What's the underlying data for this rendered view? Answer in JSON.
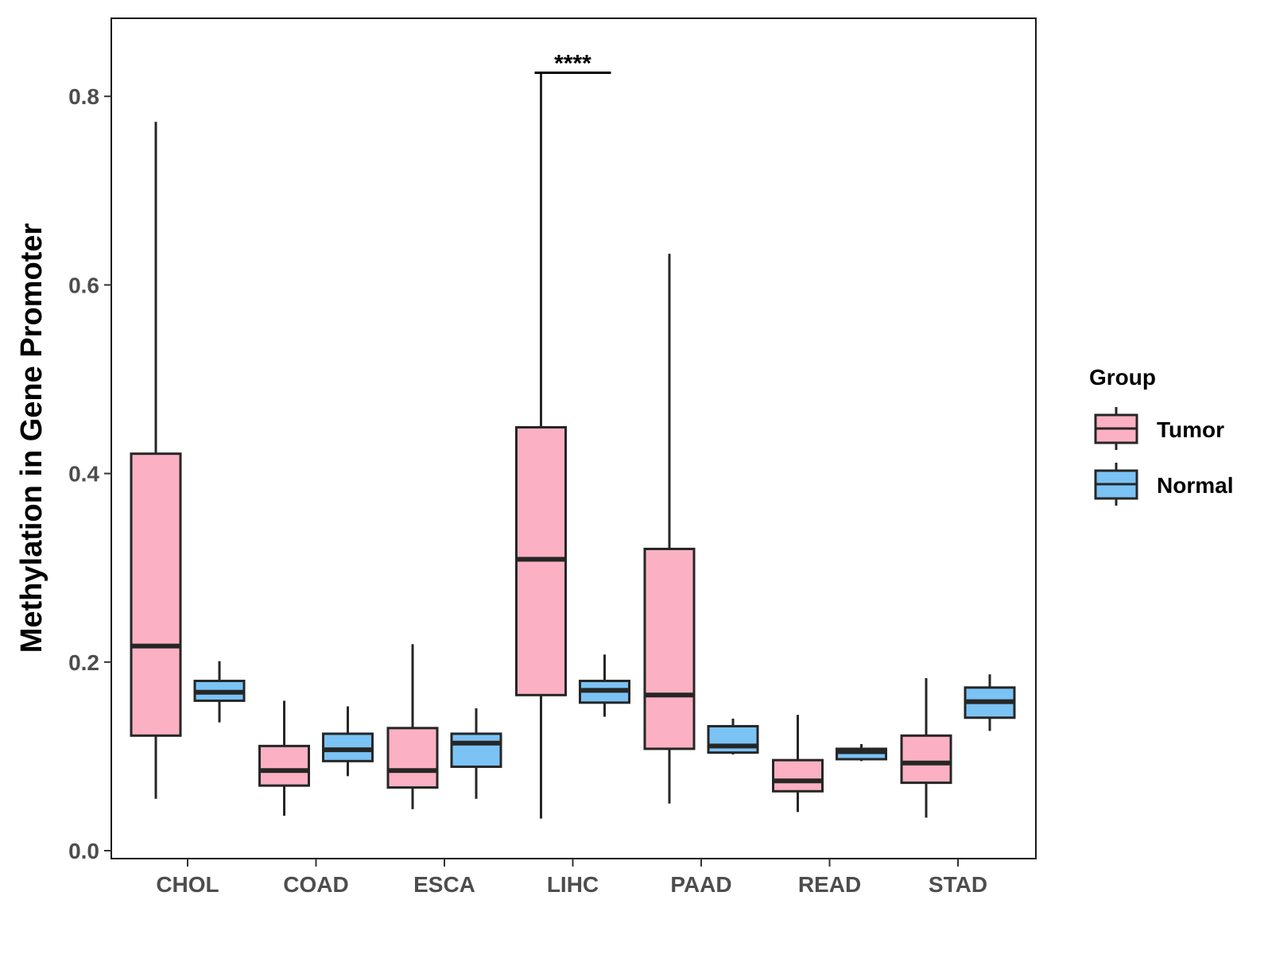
{
  "chart_data": {
    "type": "boxplot",
    "title": "",
    "xlabel": "",
    "ylabel": "Methylation in Gene Promoter",
    "ylim": [
      0.0,
      0.875
    ],
    "yticks": [
      "0.0",
      "0.2",
      "0.4",
      "0.6",
      "0.8"
    ],
    "categories": [
      "CHOL",
      "COAD",
      "ESCA",
      "LIHC",
      "PAAD",
      "READ",
      "STAD"
    ],
    "legend": {
      "title": "Group",
      "position": "right"
    },
    "series": [
      {
        "name": "Tumor",
        "color": "#FBB1C3",
        "boxes": [
          {
            "min": 0.055,
            "q1": 0.122,
            "median": 0.217,
            "q3": 0.421,
            "max": 0.773
          },
          {
            "min": 0.037,
            "q1": 0.069,
            "median": 0.085,
            "q3": 0.111,
            "max": 0.159
          },
          {
            "min": 0.044,
            "q1": 0.067,
            "median": 0.085,
            "q3": 0.13,
            "max": 0.219
          },
          {
            "min": 0.034,
            "q1": 0.165,
            "median": 0.309,
            "q3": 0.449,
            "max": 0.826
          },
          {
            "min": 0.05,
            "q1": 0.108,
            "median": 0.165,
            "q3": 0.32,
            "max": 0.633
          },
          {
            "min": 0.041,
            "q1": 0.063,
            "median": 0.074,
            "q3": 0.096,
            "max": 0.144
          },
          {
            "min": 0.035,
            "q1": 0.072,
            "median": 0.093,
            "q3": 0.122,
            "max": 0.183
          }
        ]
      },
      {
        "name": "Normal",
        "color": "#7BC3F5",
        "boxes": [
          {
            "min": 0.136,
            "q1": 0.159,
            "median": 0.168,
            "q3": 0.18,
            "max": 0.201
          },
          {
            "min": 0.079,
            "q1": 0.095,
            "median": 0.107,
            "q3": 0.124,
            "max": 0.153
          },
          {
            "min": 0.055,
            "q1": 0.089,
            "median": 0.114,
            "q3": 0.124,
            "max": 0.151
          },
          {
            "min": 0.142,
            "q1": 0.157,
            "median": 0.17,
            "q3": 0.18,
            "max": 0.208
          },
          {
            "min": 0.102,
            "q1": 0.104,
            "median": 0.111,
            "q3": 0.132,
            "max": 0.14
          },
          {
            "min": 0.095,
            "q1": 0.097,
            "median": 0.105,
            "q3": 0.108,
            "max": 0.113
          },
          {
            "min": 0.127,
            "q1": 0.141,
            "median": 0.158,
            "q3": 0.173,
            "max": 0.187
          }
        ]
      }
    ],
    "annotations": [
      {
        "category": "LIHC",
        "text": "****",
        "y": 0.825
      }
    ]
  }
}
